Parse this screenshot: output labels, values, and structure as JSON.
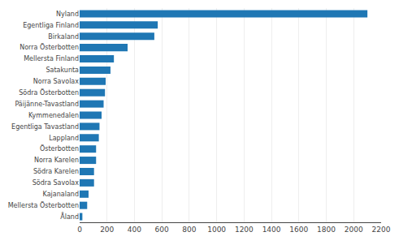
{
  "chart_data": {
    "type": "bar",
    "orientation": "horizontal",
    "categories": [
      "Nyland",
      "Egentliga Finland",
      "Birkaland",
      "Norra Österbotten",
      "Mellersta Finland",
      "Satakunta",
      "Norra Savolax",
      "Södra Österbotten",
      "Päijänne-Tavastland",
      "Kymmenedalen",
      "Egentliga Tavastland",
      "Lappland",
      "Österbotten",
      "Norra Karelen",
      "Södra Karelen",
      "Södra Savolax",
      "Kajanaland",
      "Mellersta Österbotten",
      "Åland"
    ],
    "values": [
      2100,
      570,
      545,
      350,
      250,
      225,
      190,
      185,
      175,
      160,
      145,
      140,
      120,
      120,
      105,
      105,
      65,
      55,
      20
    ],
    "color": "#1f77b4",
    "xlim": [
      0,
      2200
    ],
    "xticks": [
      0,
      200,
      400,
      600,
      800,
      1000,
      1200,
      1400,
      1600,
      1800,
      2000,
      2200
    ],
    "grid": true
  }
}
